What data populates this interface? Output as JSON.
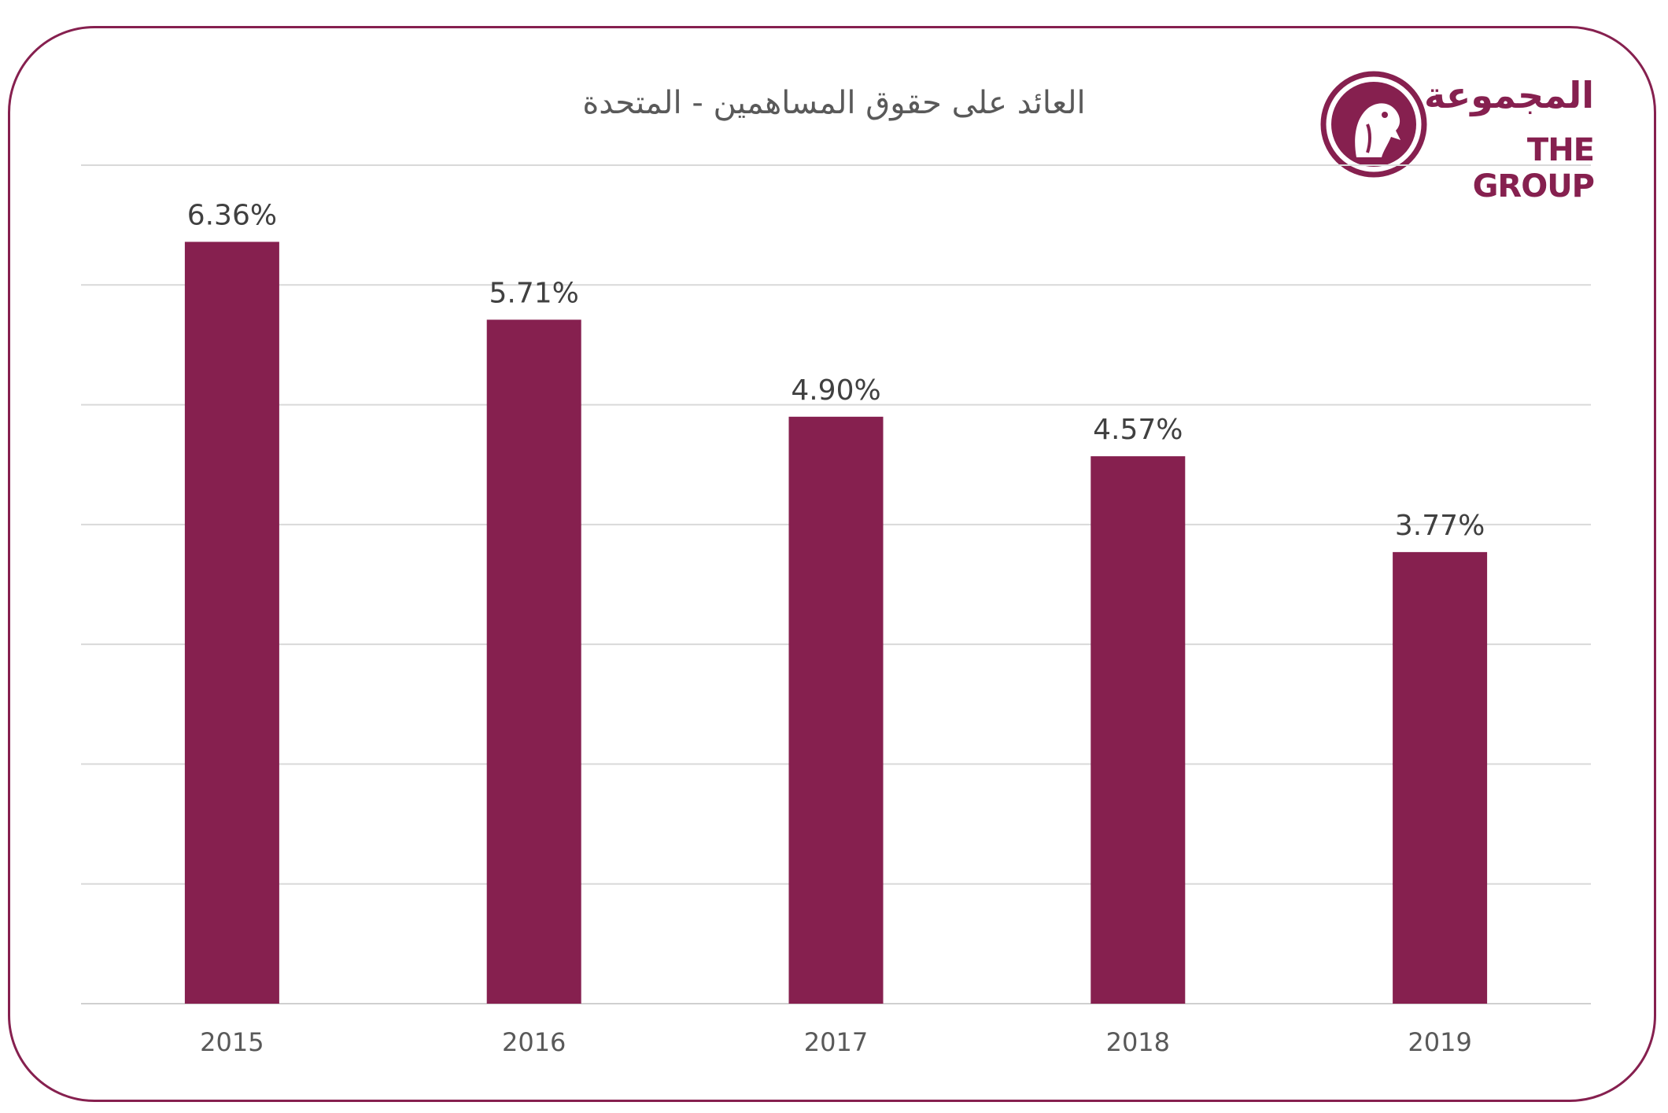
{
  "chart_data": {
    "type": "bar",
    "title": "العائد على حقوق المساهمين - المتحدة",
    "categories": [
      "2015",
      "2016",
      "2017",
      "2018",
      "2019"
    ],
    "values": [
      6.36,
      5.71,
      4.9,
      4.57,
      3.77
    ],
    "value_labels": [
      "6.36%",
      "5.71%",
      "4.90%",
      "4.57%",
      "3.77%"
    ],
    "ylim": [
      0,
      7
    ],
    "grid": true,
    "bar_color": "#86204f",
    "xlabel": "",
    "ylabel": ""
  },
  "logo": {
    "text_ar": "المجموعة",
    "text_en": "THE GROUP",
    "color": "#86204f"
  }
}
